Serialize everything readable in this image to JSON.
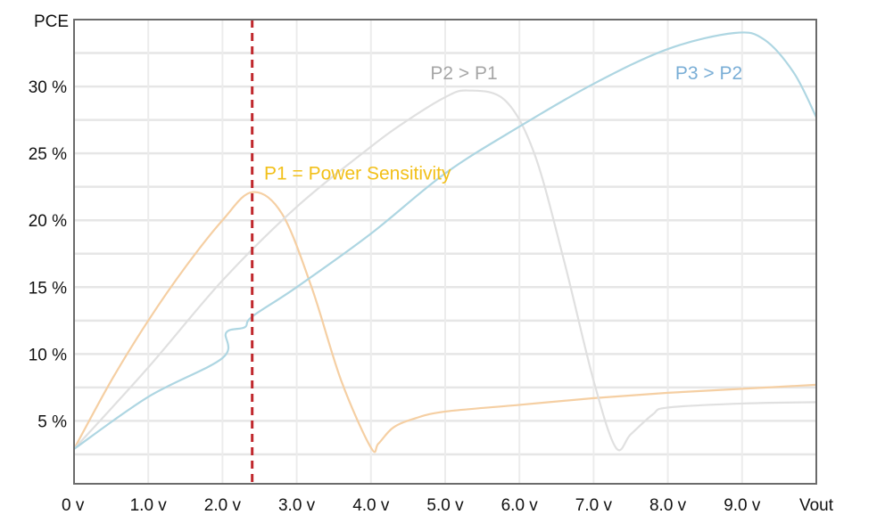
{
  "chart_data": {
    "type": "line",
    "title": "",
    "xlabel": "Vout",
    "ylabel": "PCE",
    "xlim": [
      0,
      10
    ],
    "ylim": [
      0.3,
      35
    ],
    "x_ticks": [
      {
        "value": 0,
        "label": "0 v"
      },
      {
        "value": 1,
        "label": "1.0 v"
      },
      {
        "value": 2,
        "label": "2.0 v"
      },
      {
        "value": 3,
        "label": "3.0 v"
      },
      {
        "value": 4,
        "label": "4.0 v"
      },
      {
        "value": 5,
        "label": "5.0 v"
      },
      {
        "value": 6,
        "label": "6.0 v"
      },
      {
        "value": 7,
        "label": "7.0 v"
      },
      {
        "value": 8,
        "label": "8.0 v"
      },
      {
        "value": 9,
        "label": "9.0 v"
      },
      {
        "value": 10,
        "label": "Vout"
      }
    ],
    "y_ticks": [
      {
        "value": 5,
        "label": "5 %"
      },
      {
        "value": 10,
        "label": "10 %"
      },
      {
        "value": 15,
        "label": "15 %"
      },
      {
        "value": 20,
        "label": "20 %"
      },
      {
        "value": 25,
        "label": "25 %"
      },
      {
        "value": 30,
        "label": "30 %"
      }
    ],
    "y_axis_title": "PCE",
    "grid": true,
    "grid_step_y": 2.5,
    "grid_step_x": 1,
    "series": [
      {
        "name": "P1",
        "color": "#f5cfa3",
        "x": [
          0,
          0.5,
          1.0,
          1.5,
          2.0,
          2.4,
          2.8,
          3.2,
          3.6,
          4.0,
          4.1,
          4.3,
          4.6,
          5,
          6,
          7,
          8,
          9,
          10
        ],
        "y": [
          2.9,
          8,
          12.5,
          16.5,
          20,
          22.1,
          20.5,
          15,
          8,
          3.0,
          3.3,
          4.5,
          5.2,
          5.7,
          6.2,
          6.7,
          7.1,
          7.4,
          7.7
        ]
      },
      {
        "name": "P2",
        "color": "#e0e0e0",
        "x": [
          0,
          1,
          2,
          3,
          4,
          4.5,
          5,
          5.3,
          5.8,
          6.2,
          6.6,
          7.0,
          7.3,
          7.5,
          7.8,
          8,
          9,
          10
        ],
        "y": [
          2.9,
          9,
          15.5,
          21,
          25.5,
          27.5,
          29.2,
          29.7,
          29,
          25,
          17,
          8,
          3.0,
          4,
          5.5,
          6,
          6.3,
          6.4
        ]
      },
      {
        "name": "P3",
        "color": "#aed6e2",
        "x": [
          0,
          1,
          2,
          2.05,
          2.3,
          2.4,
          3,
          4,
          5,
          6,
          7,
          8,
          8.9,
          9.3,
          9.7,
          10
        ],
        "y": [
          2.9,
          6.8,
          9.7,
          11.6,
          12.0,
          12.8,
          15,
          19,
          23.5,
          27,
          30.2,
          32.8,
          34,
          33.5,
          31,
          27.7
        ]
      }
    ],
    "marker_line": {
      "x": 2.4,
      "color": "#c0282d",
      "style": "dashed"
    },
    "annotations": [
      {
        "text": "P1 = Power Sensitivity",
        "color": "#f2c01a",
        "x": 0.2,
        "y": 23.5
      },
      {
        "text": "P2 > P1",
        "color": "#a6a6a6",
        "x": 4.8,
        "y": 31
      },
      {
        "text": "P3 > P2",
        "color": "#7aaed6",
        "x": 8.1,
        "y": 31
      }
    ]
  }
}
